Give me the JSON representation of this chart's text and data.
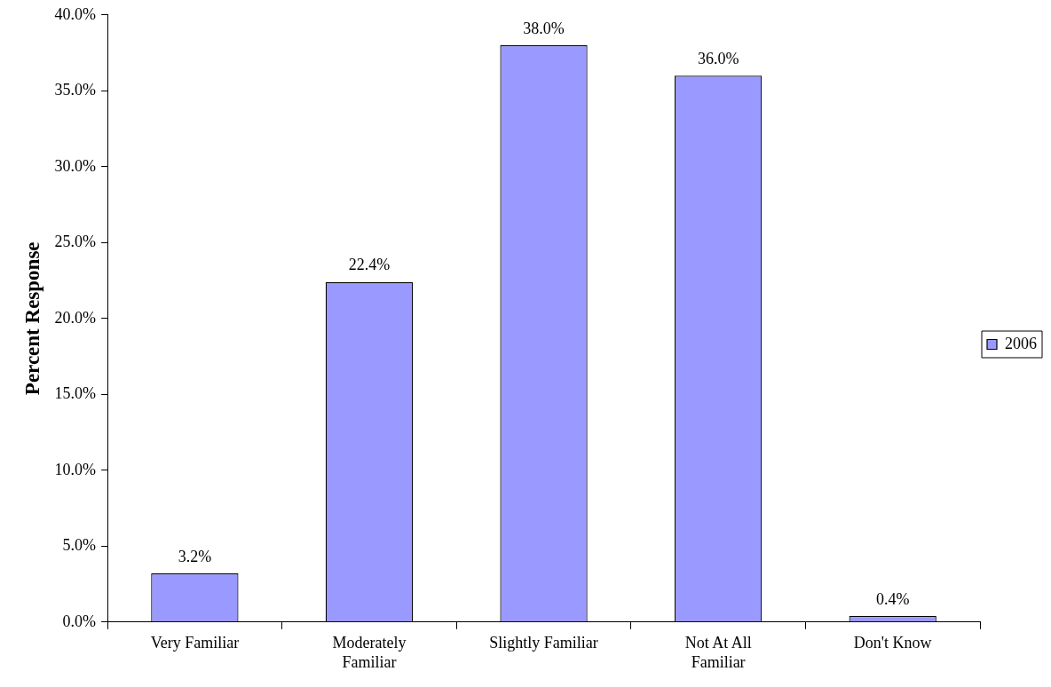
{
  "chart_data": {
    "type": "bar",
    "ylabel": "Percent Response",
    "categories": [
      "Very Familiar",
      "Moderately Familiar",
      "Slightly Familiar",
      "Not At All Familiar",
      "Don't Know"
    ],
    "series": [
      {
        "name": "2006",
        "color": "#9999ff",
        "values": [
          3.2,
          22.4,
          38.0,
          36.0,
          0.4
        ],
        "value_labels": [
          "3.2%",
          "22.4%",
          "38.0%",
          "36.0%",
          "0.4%"
        ]
      }
    ],
    "ylim": [
      0,
      40
    ],
    "yticks": [
      {
        "value": 0,
        "label": "0.0%"
      },
      {
        "value": 5,
        "label": "5.0%"
      },
      {
        "value": 10,
        "label": "10.0%"
      },
      {
        "value": 15,
        "label": "15.0%"
      },
      {
        "value": 20,
        "label": "20.0%"
      },
      {
        "value": 25,
        "label": "25.0%"
      },
      {
        "value": 30,
        "label": "30.0%"
      },
      {
        "value": 35,
        "label": "35.0%"
      },
      {
        "value": 40,
        "label": "40.0%"
      }
    ],
    "grid": false,
    "legend": "right"
  }
}
